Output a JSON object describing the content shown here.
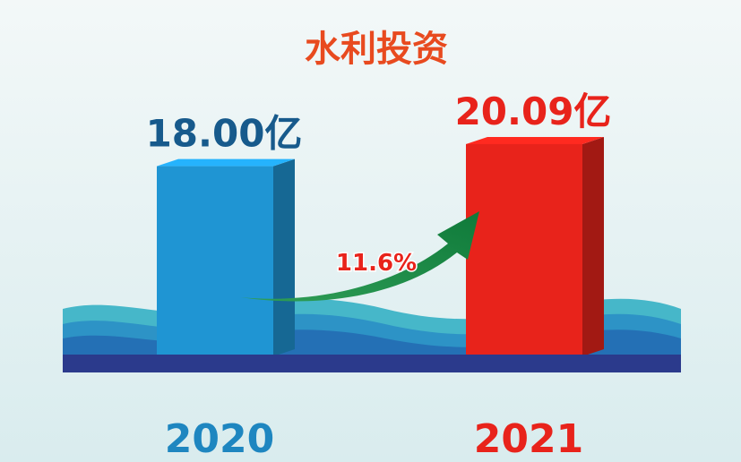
{
  "chart_data": {
    "type": "bar",
    "title": "水利投资",
    "categories": [
      "2020",
      "2021"
    ],
    "values": [
      18.0,
      20.09
    ],
    "value_labels": [
      "18.00亿",
      "20.09亿"
    ],
    "colors": [
      "#1f95d3",
      "#e8231b"
    ],
    "label_colors": [
      "#175a8c",
      "#e8231b"
    ],
    "annotation": "11.6%"
  }
}
